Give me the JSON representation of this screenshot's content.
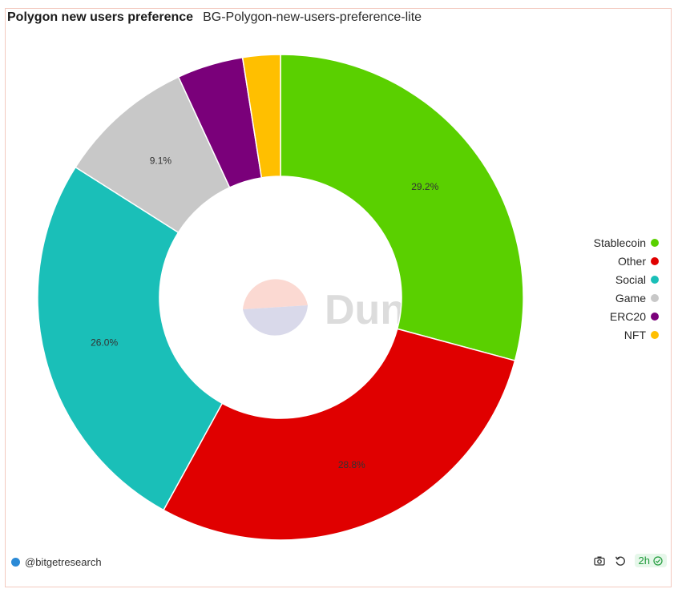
{
  "header": {
    "title": "Polygon new users preference",
    "subtitle": "BG-Polygon-new-users-preference-lite"
  },
  "watermark": {
    "text": "Dune"
  },
  "footer": {
    "author": "@bitgetresearch",
    "refresh_age": "2h"
  },
  "icons": [
    "camera-icon",
    "refresh-icon",
    "check-circle-icon",
    "avatar"
  ],
  "chart_data": {
    "type": "pie",
    "variant": "donut",
    "categories": [
      "Stablecoin",
      "Other",
      "Social",
      "Game",
      "ERC20",
      "NFT"
    ],
    "values": [
      29.2,
      28.8,
      26.0,
      9.1,
      4.4,
      2.5
    ],
    "labels": [
      "29.2%",
      "28.8%",
      "26.0%",
      "9.1%",
      "",
      ""
    ],
    "colors": [
      "#5ad000",
      "#e00000",
      "#1abfb8",
      "#c8c8c8",
      "#7a007a",
      "#ffbf00"
    ],
    "legend_position": "right"
  }
}
